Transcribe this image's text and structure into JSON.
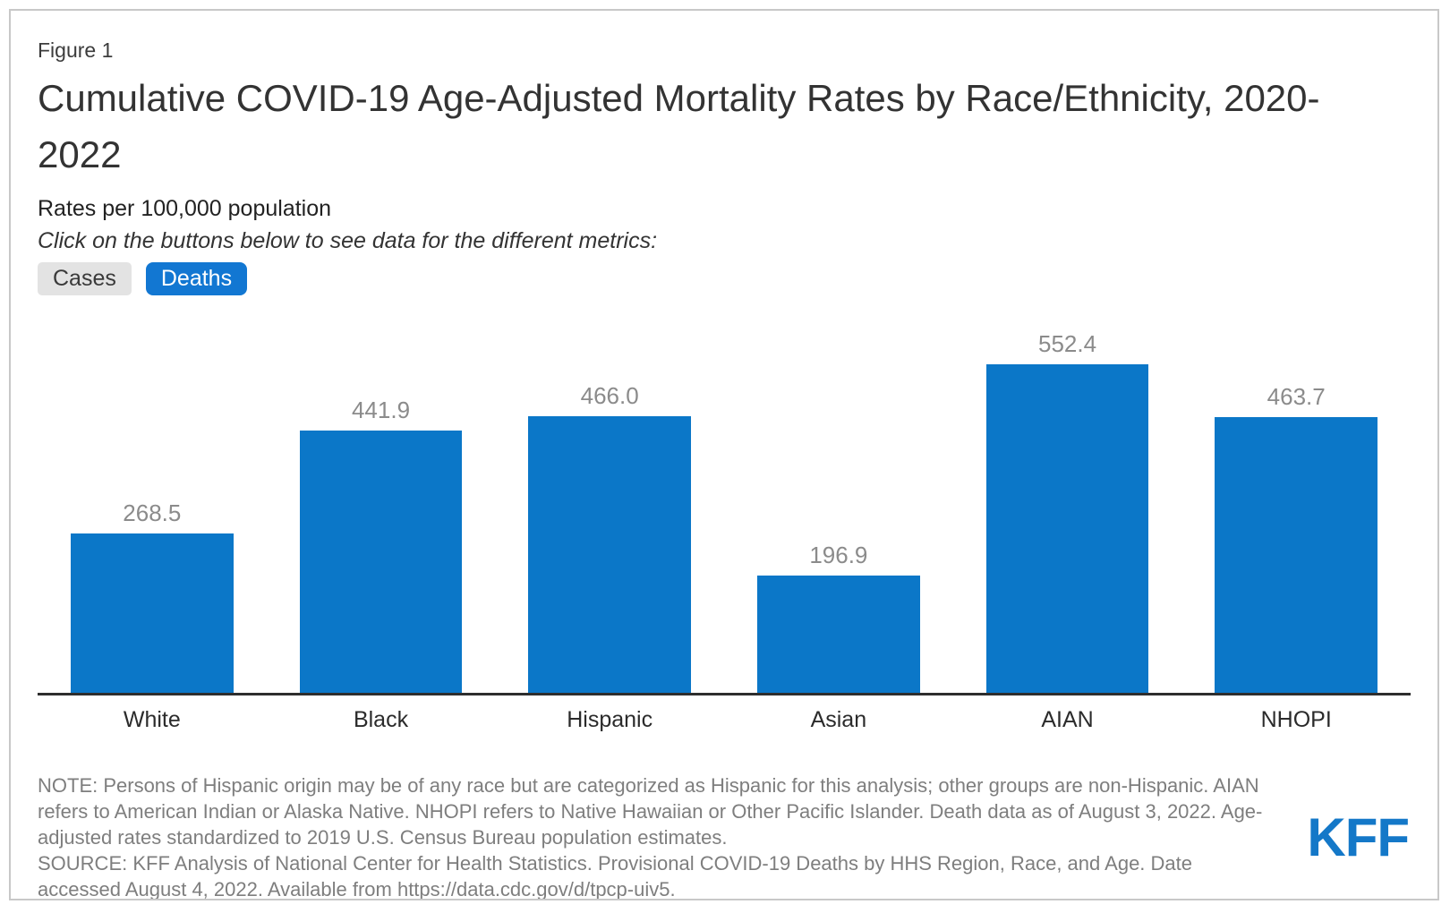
{
  "figure_label": "Figure 1",
  "title": "Cumulative COVID-19 Age-Adjusted Mortality Rates by Race/Ethnicity, 2020-2022",
  "subtitle": "Rates per 100,000 population",
  "instruction": "Click on the buttons below to see data for the different metrics:",
  "buttons": [
    {
      "label": "Cases",
      "active": false
    },
    {
      "label": "Deaths",
      "active": true
    }
  ],
  "chart_data": {
    "type": "bar",
    "categories": [
      "White",
      "Black",
      "Hispanic",
      "Asian",
      "AIAN",
      "NHOPI"
    ],
    "values": [
      268.5,
      441.9,
      466.0,
      196.9,
      552.4,
      463.7
    ],
    "value_labels": [
      "268.5",
      "441.9",
      "466.0",
      "196.9",
      "552.4",
      "463.7"
    ],
    "title": "Cumulative COVID-19 Age-Adjusted Mortality Rates by Race/Ethnicity, 2020-2022",
    "xlabel": "",
    "ylabel": "Rates per 100,000 population",
    "ylim": [
      0,
      640
    ],
    "grid": false,
    "legend": false,
    "bar_color": "#0b77c8",
    "value_label_color": "#8b8b8b",
    "axis_line_color": "#2e2e2e"
  },
  "footer": {
    "note": "NOTE: Persons of Hispanic origin may be of any race but are categorized as Hispanic for this analysis; other groups are non-Hispanic. AIAN refers to American Indian or Alaska Native. NHOPI refers to Native Hawaiian or Other Pacific Islander. Death data as of August 3, 2022. Age-adjusted rates standardized to 2019 U.S. Census Bureau population estimates.",
    "source": "SOURCE: KFF Analysis of National Center for Health Statistics. Provisional COVID-19 Deaths by HHS Region, Race, and Age. Date accessed August 4, 2022. Available from https://data.cdc.gov/d/tpcp-uiv5."
  },
  "logo": {
    "text": "KFF",
    "color": "#1478c8"
  }
}
